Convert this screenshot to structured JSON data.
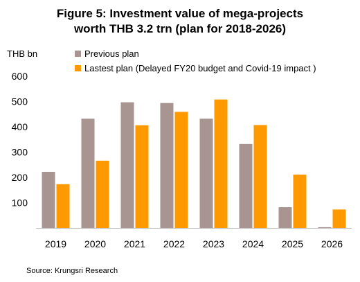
{
  "title_line1": "Figure 5: Investment value of mega-projects",
  "title_line2": "worth THB 3.2 trn (plan for 2018-2026)",
  "y_unit": "THB bn",
  "source": "Source: Krungsri Research",
  "colors": {
    "previous": "#A89490",
    "latest": "#FF9900",
    "axis": "#BFBFBF"
  },
  "chart_data": {
    "type": "bar",
    "title": "Figure 5: Investment value of mega-projects worth THB 3.2 trn (plan for 2018-2026)",
    "ylabel": "THB bn",
    "xlabel": "",
    "categories": [
      "2019",
      "2020",
      "2021",
      "2022",
      "2023",
      "2024",
      "2025",
      "2026"
    ],
    "series": [
      {
        "name": "Previous plan",
        "values": [
          222,
          432,
          497,
          494,
          432,
          332,
          82,
          3
        ]
      },
      {
        "name": "Lastest plan (Delayed FY20 budget and Covid-19 impact )",
        "values": [
          173,
          266,
          406,
          459,
          508,
          407,
          211,
          73
        ]
      }
    ],
    "ylim": [
      0,
      600
    ],
    "yticks": [
      100,
      200,
      300,
      400,
      500,
      600
    ],
    "grid": false,
    "legend_position": "top"
  }
}
